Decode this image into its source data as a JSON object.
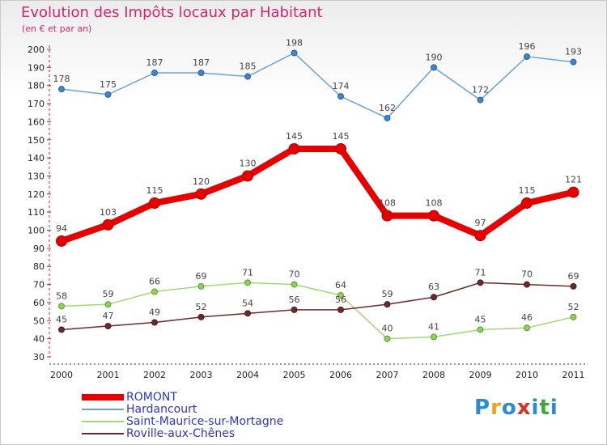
{
  "chart_data": {
    "type": "line",
    "title": "Evolution des Impôts locaux par Habitant",
    "subtitle": "(en € et par an)",
    "xlabel": "",
    "ylabel": "",
    "x": [
      "2000",
      "2001",
      "2002",
      "2003",
      "2004",
      "2005",
      "2006",
      "2007",
      "2008",
      "2009",
      "2010",
      "2011"
    ],
    "ylim": [
      30,
      200
    ],
    "yticks": [
      30,
      40,
      50,
      60,
      70,
      80,
      90,
      100,
      110,
      120,
      130,
      140,
      150,
      160,
      170,
      180,
      190,
      200
    ],
    "grid": false,
    "series": [
      {
        "name": "ROMONT",
        "color": "#e60000",
        "values": [
          94,
          103,
          115,
          120,
          130,
          145,
          145,
          108,
          108,
          97,
          115,
          121
        ]
      },
      {
        "name": "Hardancourt",
        "color": "#6aa3d9",
        "values": [
          178,
          175,
          187,
          187,
          185,
          198,
          174,
          162,
          190,
          172,
          196,
          193
        ]
      },
      {
        "name": "Saint-Maurice-sur-Mortagne",
        "color": "#a3d977",
        "values": [
          58,
          59,
          66,
          69,
          71,
          70,
          64,
          40,
          41,
          45,
          46,
          52
        ]
      },
      {
        "name": "Roville-aux-Chênes",
        "color": "#6b2b2b",
        "values": [
          45,
          47,
          49,
          52,
          54,
          56,
          56,
          59,
          63,
          71,
          70,
          69
        ]
      }
    ]
  },
  "legend": {
    "items": [
      {
        "label": "ROMONT",
        "color": "#e60000"
      },
      {
        "label": "Hardancourt",
        "color": "#6aa3d9"
      },
      {
        "label": "Saint-Maurice-sur-Mortagne",
        "color": "#a3d977"
      },
      {
        "label": "Roville-aux-Chênes",
        "color": "#6b2b2b"
      }
    ]
  },
  "brand": {
    "letters": [
      "P",
      "r",
      "o",
      "x",
      "i",
      "t",
      "i"
    ],
    "colors": [
      "#2a8bd0",
      "#f0a020",
      "#2a8bd0",
      "#e03020",
      "#2a8bd0",
      "#40a840",
      "#2a8bd0"
    ]
  }
}
